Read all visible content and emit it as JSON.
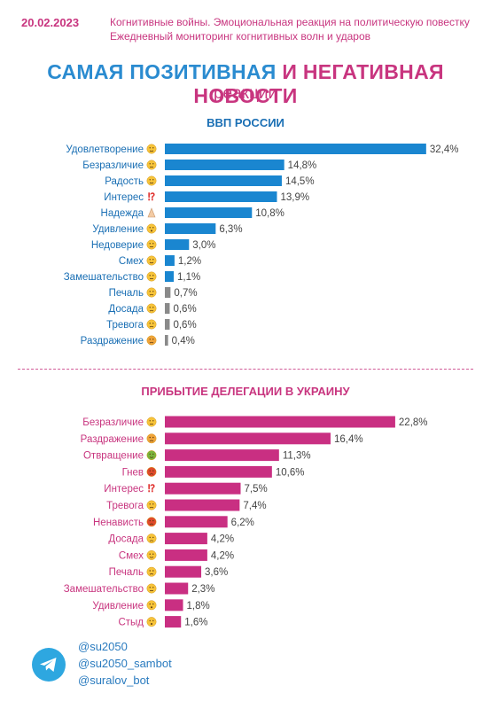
{
  "header": {
    "date": "20.02.2023",
    "subtitle_line1": "Когнитивные войны. Эмоциональная реакция на политическую повестку",
    "subtitle_line2": "Ежедневный мониторинг когнитивных волн и ударов",
    "title_part1": "САМАЯ ПОЗИТИВНАЯ",
    "title_part2": "И НЕГАТИВНАЯ НОВОСТИ",
    "title_line2": "реакции"
  },
  "colors": {
    "blue": "#1a86d0",
    "pink": "#c92f82",
    "gray": "#8a8a8a",
    "label_blue": "#1a6fb4",
    "label_pink": "#c8357f"
  },
  "chart_data": [
    {
      "type": "bar",
      "orientation": "horizontal",
      "title": "ВВП РОССИИ",
      "categories": [
        "Удовлетворение",
        "Безразличие",
        "Радость",
        "Интерес",
        "Надежда",
        "Удивление",
        "Недоверие",
        "Смех",
        "Замешательство",
        "Печаль",
        "Досада",
        "Тревога",
        "Раздражение"
      ],
      "icons": [
        "smiling-emoji",
        "neutral-emoji",
        "joy-emoji",
        "exclamation-icon",
        "praying-hands-emoji",
        "surprised-emoji",
        "doubtful-emoji",
        "laughing-emoji",
        "confused-emoji",
        "sad-emoji",
        "annoyed-emoji",
        "worried-emoji",
        "angry-emoji"
      ],
      "values": [
        32.4,
        14.8,
        14.5,
        13.9,
        10.8,
        6.3,
        3.0,
        1.2,
        1.1,
        0.7,
        0.6,
        0.6,
        0.4
      ],
      "value_labels": [
        "32,4%",
        "14,8%",
        "14,5%",
        "13,9%",
        "10,8%",
        "6,3%",
        "3,0%",
        "1,2%",
        "1,1%",
        "0,7%",
        "0,6%",
        "0,6%",
        "0,4%"
      ],
      "bar_colors": [
        "blue",
        "blue",
        "blue",
        "blue",
        "blue",
        "blue",
        "blue",
        "blue",
        "blue",
        "gray",
        "gray",
        "gray",
        "gray"
      ],
      "unit": "%"
    },
    {
      "type": "bar",
      "orientation": "horizontal",
      "title": "ПРИБЫТИЕ ДЕЛЕГАЦИИ В УКРАИНУ",
      "categories": [
        "Безразличие",
        "Раздражение",
        "Отвращение",
        "Гнев",
        "Интерес",
        "Тревога",
        "Ненависть",
        "Досада",
        "Смех",
        "Печаль",
        "Замешательство",
        "Удивление",
        "Стыд"
      ],
      "icons": [
        "neutral-emoji",
        "angry-emoji",
        "nauseated-emoji",
        "angry-red-emoji",
        "exclamation-icon",
        "worried-emoji",
        "rage-emoji",
        "annoyed-emoji",
        "laughing-emoji",
        "sad-emoji",
        "confused-emoji",
        "surprised-emoji",
        "shocked-emoji"
      ],
      "values": [
        22.8,
        16.4,
        11.3,
        10.6,
        7.5,
        7.4,
        6.2,
        4.2,
        4.2,
        3.6,
        2.3,
        1.8,
        1.6
      ],
      "value_labels": [
        "22,8%",
        "16,4%",
        "11,3%",
        "10,6%",
        "7,5%",
        "7,4%",
        "6,2%",
        "4,2%",
        "4,2%",
        "3,6%",
        "2,3%",
        "1,8%",
        "1,6%"
      ],
      "bar_colors": [
        "pink",
        "pink",
        "pink",
        "pink",
        "pink",
        "pink",
        "pink",
        "pink",
        "pink",
        "pink",
        "pink",
        "pink",
        "pink"
      ],
      "unit": "%"
    }
  ],
  "footer": {
    "icon": "telegram-icon",
    "handles": [
      "@su2050",
      "@su2050_sambot",
      "@suralov_bot"
    ]
  }
}
